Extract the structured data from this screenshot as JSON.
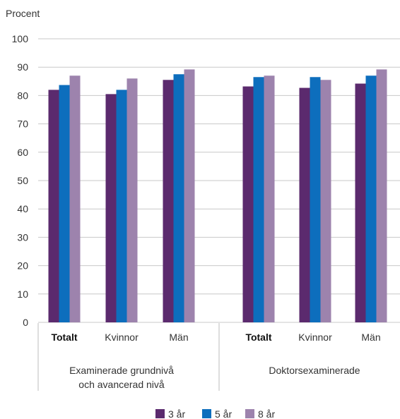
{
  "chart_data": {
    "type": "bar",
    "ylabel": "Procent",
    "ylim": [
      0,
      100
    ],
    "yticks": [
      0,
      10,
      20,
      30,
      40,
      50,
      60,
      70,
      80,
      90,
      100
    ],
    "grid": true,
    "legend_position": "bottom",
    "groups": [
      {
        "label_lines": [
          "Examinerade grundnivå",
          "och avancerad nivå"
        ],
        "categories": [
          {
            "label": "Totalt",
            "bold": true
          },
          {
            "label": "Kvinnor",
            "bold": false
          },
          {
            "label": "Män",
            "bold": false
          }
        ]
      },
      {
        "label_lines": [
          "Doktorsexaminerade"
        ],
        "categories": [
          {
            "label": "Totalt",
            "bold": true
          },
          {
            "label": "Kvinnor",
            "bold": false
          },
          {
            "label": "Män",
            "bold": false
          }
        ]
      }
    ],
    "series": [
      {
        "name": "3 år",
        "color": "#5b2a6e",
        "values": [
          82,
          80.5,
          85.5,
          83.2,
          82.7,
          84.2
        ]
      },
      {
        "name": "5 år",
        "color": "#0d6ebd",
        "values": [
          83.7,
          82,
          87.5,
          86.5,
          86.5,
          87
        ]
      },
      {
        "name": "8 år",
        "color": "#9d83ad",
        "values": [
          87,
          86,
          89.2,
          87,
          85.5,
          89.2
        ]
      }
    ]
  }
}
